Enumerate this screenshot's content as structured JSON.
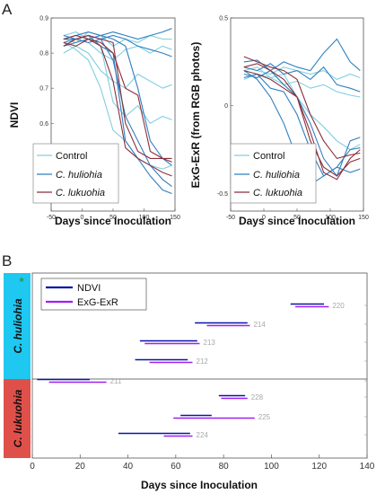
{
  "panel_letters": {
    "a": "A",
    "b": "B"
  },
  "colors": {
    "control": "#7fcfe0",
    "huliohia": "#2f7fbf",
    "lukuohia": "#8b2f3c",
    "ndvi": "#0a14a8",
    "exg": "#a021ef",
    "huliohia_band": "#1ec8f0",
    "lukuohia_band": "#e0504a",
    "star": "#2e9a3a"
  },
  "chart_data": [
    {
      "type": "line",
      "title": "",
      "xlabel": "Days since Inoculation",
      "ylabel": "NDVI",
      "xlim": [
        -50,
        150
      ],
      "ylim": [
        0.35,
        0.9
      ],
      "xticks": [
        "-50",
        "0",
        "50",
        "100",
        "150"
      ],
      "yticks": [
        "0.4",
        "0.5",
        "0.6",
        "0.7",
        "0.8",
        "0.9"
      ],
      "legend": {
        "placement": "bottom-left",
        "entries": [
          "Control",
          "C. huliohia",
          "C. lukuohia"
        ]
      },
      "series": [
        {
          "group": "control",
          "x": [
            -30,
            -10,
            10,
            30,
            50,
            70,
            90,
            110,
            130,
            145
          ],
          "y": [
            0.84,
            0.83,
            0.86,
            0.85,
            0.82,
            0.84,
            0.83,
            0.85,
            0.84,
            0.84
          ]
        },
        {
          "group": "control",
          "x": [
            -30,
            -10,
            10,
            30,
            50,
            70,
            90,
            110,
            130,
            145
          ],
          "y": [
            0.82,
            0.84,
            0.83,
            0.8,
            0.78,
            0.81,
            0.82,
            0.8,
            0.82,
            0.81
          ]
        },
        {
          "group": "control",
          "x": [
            -30,
            -10,
            10,
            30,
            50,
            70,
            90,
            110,
            130,
            145
          ],
          "y": [
            0.8,
            0.82,
            0.8,
            0.75,
            0.72,
            0.7,
            0.74,
            0.72,
            0.7,
            0.71
          ]
        },
        {
          "group": "control",
          "x": [
            -30,
            -10,
            10,
            30,
            50,
            70,
            90,
            110,
            130,
            145
          ],
          "y": [
            0.85,
            0.86,
            0.84,
            0.82,
            0.66,
            0.62,
            0.65,
            0.6,
            0.62,
            0.61
          ]
        },
        {
          "group": "control",
          "x": [
            -30,
            -10,
            10,
            30,
            50,
            70,
            90,
            110,
            130,
            145
          ],
          "y": [
            0.83,
            0.81,
            0.78,
            0.7,
            0.58,
            0.55,
            0.5,
            0.48,
            0.47,
            0.48
          ]
        },
        {
          "group": "huliohia",
          "x": [
            -30,
            -10,
            10,
            30,
            50,
            70,
            90,
            110,
            130,
            145
          ],
          "y": [
            0.84,
            0.85,
            0.86,
            0.85,
            0.86,
            0.85,
            0.84,
            0.85,
            0.86,
            0.87
          ]
        },
        {
          "group": "huliohia",
          "x": [
            -30,
            -10,
            10,
            30,
            50,
            70,
            90,
            110,
            130,
            145
          ],
          "y": [
            0.83,
            0.84,
            0.85,
            0.84,
            0.85,
            0.84,
            0.82,
            0.81,
            0.8,
            0.79
          ]
        },
        {
          "group": "huliohia",
          "x": [
            -30,
            -10,
            10,
            30,
            50,
            70,
            90,
            110,
            130,
            145
          ],
          "y": [
            0.82,
            0.83,
            0.84,
            0.85,
            0.84,
            0.82,
            0.7,
            0.55,
            0.5,
            0.48
          ]
        },
        {
          "group": "huliohia",
          "x": [
            -30,
            -10,
            10,
            30,
            50,
            70,
            90,
            110,
            130,
            145
          ],
          "y": [
            0.84,
            0.84,
            0.83,
            0.84,
            0.78,
            0.62,
            0.55,
            0.48,
            0.44,
            0.42
          ]
        },
        {
          "group": "huliohia",
          "x": [
            -30,
            -10,
            10,
            30,
            50,
            70,
            90,
            110,
            130,
            145
          ],
          "y": [
            0.85,
            0.84,
            0.85,
            0.82,
            0.8,
            0.55,
            0.5,
            0.45,
            0.41,
            0.4
          ]
        },
        {
          "group": "lukuohia",
          "x": [
            -30,
            -10,
            10,
            30,
            50,
            70,
            90,
            110,
            130,
            145
          ],
          "y": [
            0.82,
            0.84,
            0.85,
            0.84,
            0.83,
            0.6,
            0.52,
            0.5,
            0.5,
            0.49
          ]
        },
        {
          "group": "lukuohia",
          "x": [
            -30,
            -10,
            10,
            30,
            50,
            70,
            90,
            110,
            130,
            145
          ],
          "y": [
            0.83,
            0.82,
            0.84,
            0.82,
            0.72,
            0.53,
            0.5,
            0.48,
            0.46,
            0.45
          ]
        },
        {
          "group": "lukuohia",
          "x": [
            -30,
            -10,
            10,
            30,
            50,
            70,
            90,
            110,
            130,
            145
          ],
          "y": [
            0.84,
            0.85,
            0.84,
            0.83,
            0.8,
            0.7,
            0.68,
            0.52,
            0.5,
            0.5
          ]
        }
      ]
    },
    {
      "type": "line",
      "title": "",
      "xlabel": "Days since Inoculation",
      "ylabel": "ExG-ExR (from RGB photos)",
      "xlim": [
        -50,
        150
      ],
      "ylim": [
        -0.6,
        0.5
      ],
      "xticks": [
        "-50",
        "0",
        "50",
        "100",
        "150"
      ],
      "yticks": [
        "-0.5",
        "0",
        "0.5"
      ],
      "legend": {
        "placement": "bottom-left",
        "entries": [
          "Control",
          "C. huliohia",
          "C. lukuohia"
        ]
      },
      "series": [
        {
          "group": "control",
          "x": [
            -30,
            -10,
            10,
            30,
            50,
            70,
            90,
            110,
            130,
            145
          ],
          "y": [
            0.22,
            0.2,
            0.18,
            0.22,
            0.2,
            0.18,
            0.2,
            0.15,
            0.18,
            0.16
          ]
        },
        {
          "group": "control",
          "x": [
            -30,
            -10,
            10,
            30,
            50,
            70,
            90,
            110,
            130,
            145
          ],
          "y": [
            0.15,
            0.18,
            0.16,
            0.12,
            0.14,
            0.1,
            0.12,
            0.08,
            0.06,
            0.05
          ]
        },
        {
          "group": "control",
          "x": [
            -30,
            -10,
            10,
            30,
            50,
            70,
            90,
            110,
            130,
            145
          ],
          "y": [
            0.2,
            0.22,
            0.16,
            0.18,
            0.05,
            -0.05,
            -0.12,
            -0.2,
            -0.25,
            -0.22
          ]
        },
        {
          "group": "huliohia",
          "x": [
            -30,
            -10,
            10,
            30,
            50,
            70,
            90,
            110,
            130,
            145
          ],
          "y": [
            0.25,
            0.26,
            0.2,
            0.25,
            0.22,
            0.2,
            0.3,
            0.38,
            0.25,
            0.2
          ]
        },
        {
          "group": "huliohia",
          "x": [
            -30,
            -10,
            10,
            30,
            50,
            70,
            90,
            110,
            130,
            145
          ],
          "y": [
            0.22,
            0.2,
            0.24,
            0.18,
            0.2,
            0.15,
            0.22,
            0.12,
            0.1,
            0.08
          ]
        },
        {
          "group": "huliohia",
          "x": [
            -30,
            -10,
            10,
            30,
            50,
            70,
            90,
            110,
            130,
            145
          ],
          "y": [
            0.18,
            0.16,
            0.2,
            0.12,
            0.05,
            -0.1,
            -0.3,
            -0.4,
            -0.2,
            -0.18
          ]
        },
        {
          "group": "huliohia",
          "x": [
            -30,
            -10,
            10,
            30,
            50,
            70,
            90,
            110,
            130,
            145
          ],
          "y": [
            0.2,
            0.15,
            0.05,
            -0.1,
            -0.3,
            -0.45,
            -0.4,
            -0.35,
            -0.38,
            -0.36
          ]
        },
        {
          "group": "huliohia",
          "x": [
            -30,
            -10,
            10,
            30,
            50,
            70,
            90,
            110,
            130,
            145
          ],
          "y": [
            0.16,
            0.18,
            0.1,
            0.08,
            -0.05,
            -0.25,
            -0.4,
            -0.35,
            -0.25,
            -0.24
          ]
        },
        {
          "group": "lukuohia",
          "x": [
            -30,
            -10,
            10,
            30,
            50,
            70,
            90,
            110,
            130,
            145
          ],
          "y": [
            0.28,
            0.25,
            0.22,
            0.2,
            0.15,
            -0.05,
            -0.2,
            -0.3,
            -0.28,
            -0.27
          ]
        },
        {
          "group": "lukuohia",
          "x": [
            -30,
            -10,
            10,
            30,
            50,
            70,
            90,
            110,
            130,
            145
          ],
          "y": [
            0.22,
            0.24,
            0.2,
            0.15,
            0.05,
            -0.2,
            -0.35,
            -0.4,
            -0.32,
            -0.3
          ]
        },
        {
          "group": "lukuohia",
          "x": [
            -30,
            -10,
            10,
            30,
            50,
            70,
            90,
            110,
            130,
            145
          ],
          "y": [
            0.2,
            0.18,
            0.15,
            0.1,
            0.05,
            -0.15,
            -0.38,
            -0.42,
            -0.3,
            -0.25
          ]
        }
      ]
    },
    {
      "type": "bar",
      "subtype": "range",
      "title": "",
      "xlabel": "Days since Inoculation",
      "ylabel": "",
      "xlim": [
        0,
        140
      ],
      "xticks": [
        "0",
        "20",
        "40",
        "60",
        "80",
        "100",
        "120",
        "140"
      ],
      "legend": {
        "placement": "top-left",
        "entries": [
          "NDVI",
          "ExG-ExR"
        ]
      },
      "groups": [
        {
          "label": "C. huliohia",
          "star": "*",
          "trees": [
            "220",
            "214",
            "213",
            "212",
            "211"
          ]
        },
        {
          "label": "C. lukuohia",
          "trees": [
            "228",
            "225",
            "224"
          ]
        }
      ],
      "ranges": [
        {
          "tree": "220",
          "ndvi": [
            108,
            122
          ],
          "exg": [
            110,
            124
          ]
        },
        {
          "tree": "214",
          "ndvi": [
            68,
            90
          ],
          "exg": [
            73,
            91
          ]
        },
        {
          "tree": "213",
          "ndvi": [
            45,
            69
          ],
          "exg": [
            47,
            70
          ]
        },
        {
          "tree": "212",
          "ndvi": [
            43,
            65
          ],
          "exg": [
            49,
            67
          ]
        },
        {
          "tree": "211",
          "ndvi": [
            2,
            24
          ],
          "exg": [
            7,
            31
          ]
        },
        {
          "tree": "228",
          "ndvi": [
            78,
            89
          ],
          "exg": [
            79,
            90
          ]
        },
        {
          "tree": "225",
          "ndvi": [
            62,
            75
          ],
          "exg": [
            59,
            93
          ]
        },
        {
          "tree": "224",
          "ndvi": [
            36,
            66
          ],
          "exg": [
            55,
            67
          ]
        }
      ]
    }
  ]
}
